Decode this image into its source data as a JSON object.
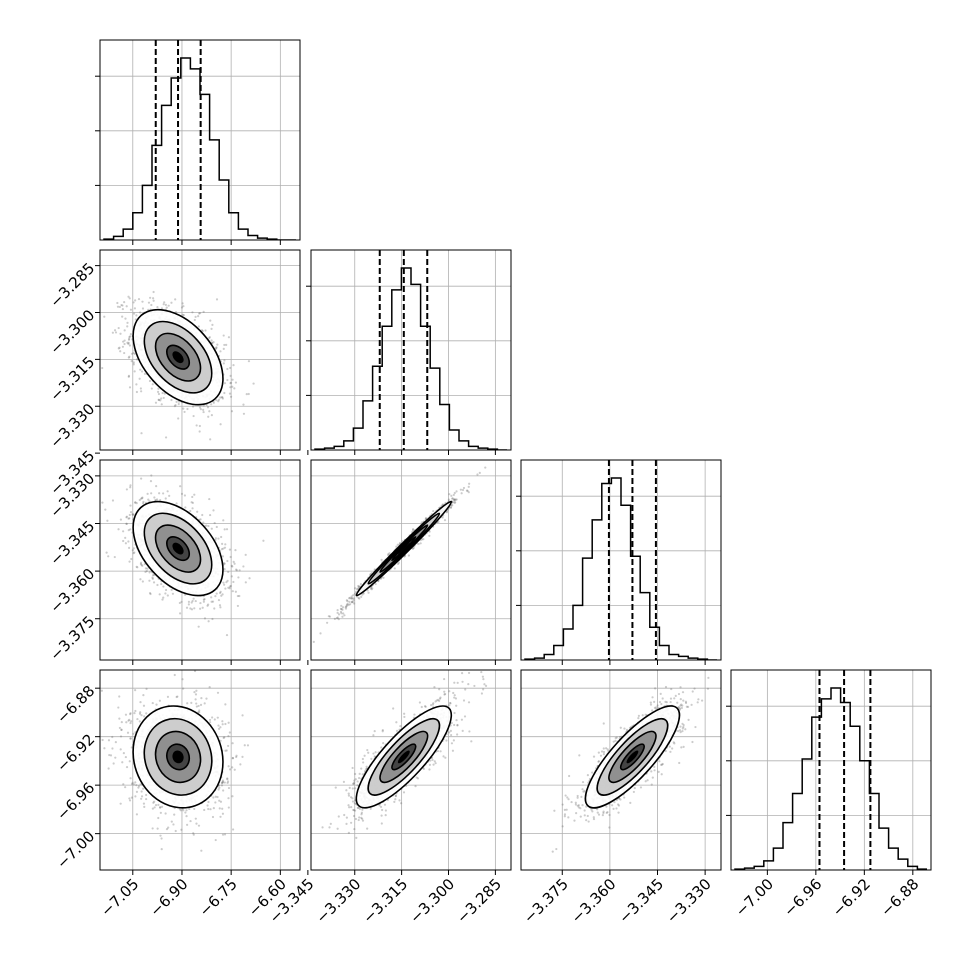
{
  "colors": {
    "line": "#000000",
    "grid": "#b0b0b0",
    "points": "#6e6e6e"
  },
  "chart_data": {
    "type": "corner",
    "grid": true,
    "variables": [
      {
        "range": [
          -7.15,
          -6.54
        ],
        "ticks": [
          -7.05,
          -6.9,
          -6.75,
          -6.6
        ],
        "tick_labels": [
          "−7.05",
          "−6.90",
          "−6.75",
          "−6.60"
        ],
        "median": -6.912,
        "q16": -6.98,
        "q84": -6.843,
        "hist": [
          0.5,
          2,
          6,
          15,
          30,
          52,
          74,
          89,
          100,
          94,
          80,
          55,
          33,
          15,
          6,
          2.5,
          1,
          0.5,
          0,
          0
        ],
        "hist_yticks": [
          0.3,
          0.6,
          0.9
        ]
      },
      {
        "range": [
          -3.344,
          -3.28
        ],
        "ticks": [
          -3.345,
          -3.33,
          -3.315,
          -3.3,
          -3.285
        ],
        "tick_labels": [
          "−3.345",
          "−3.330",
          "−3.315",
          "−3.300",
          "−3.285"
        ],
        "median": -3.3143,
        "q16": -3.322,
        "q84": -3.3068,
        "hist": [
          0.5,
          1,
          2,
          5,
          12,
          27,
          46,
          68,
          88,
          100,
          91,
          68,
          45,
          25,
          11,
          5,
          2,
          1,
          0.5,
          0
        ],
        "hist_yticks": [
          0.3,
          0.6,
          0.9
        ]
      },
      {
        "range": [
          -3.388,
          -3.325
        ],
        "ticks": [
          -3.375,
          -3.36,
          -3.345,
          -3.33
        ],
        "tick_labels": [
          "−3.375",
          "−3.360",
          "−3.345",
          "−3.330"
        ],
        "median": -3.3529,
        "q16": -3.3603,
        "q84": -3.3455,
        "hist": [
          0.5,
          1,
          3,
          8,
          17,
          30,
          56,
          77,
          97,
          100,
          85,
          57,
          37,
          18,
          8,
          3,
          2,
          1,
          0.5,
          0
        ],
        "hist_yticks": [
          0.3,
          0.6,
          0.9
        ]
      },
      {
        "range": [
          -7.03,
          -6.865
        ],
        "ticks": [
          -7.0,
          -6.96,
          -6.92,
          -6.88
        ],
        "tick_labels": [
          "−7.00",
          "−6.96",
          "−6.92",
          "−6.88"
        ],
        "median": -6.9367,
        "q16": -6.957,
        "q84": -6.915,
        "hist": [
          0.5,
          1,
          2,
          5,
          12,
          26,
          42,
          61,
          84,
          94,
          100,
          92,
          79,
          60,
          42,
          23,
          12,
          6,
          2,
          0.5
        ],
        "hist_yticks": [
          0.3,
          0.6,
          0.9
        ]
      }
    ],
    "pairs": [
      {
        "row": 1,
        "col": 0,
        "corr": -0.45
      },
      {
        "row": 2,
        "col": 0,
        "corr": -0.45
      },
      {
        "row": 2,
        "col": 1,
        "corr": 0.99
      },
      {
        "row": 3,
        "col": 0,
        "corr": -0.1
      },
      {
        "row": 3,
        "col": 1,
        "corr": 0.82
      },
      {
        "row": 3,
        "col": 2,
        "corr": 0.82
      }
    ],
    "contour_levels_sigma": [
      0.5,
      1.0,
      1.5,
      2.0
    ]
  }
}
